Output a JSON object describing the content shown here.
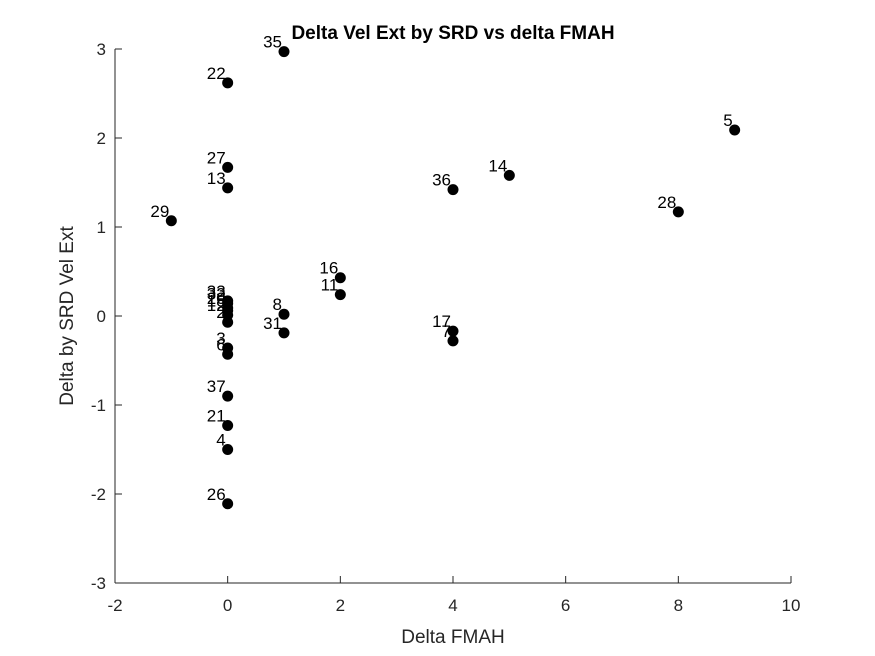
{
  "chart_data": {
    "type": "scatter",
    "title": "Delta Vel Ext by SRD vs delta FMAH",
    "xlabel": "Delta FMAH",
    "ylabel": "Delta by SRD Vel Ext",
    "xlim": [
      -2,
      10
    ],
    "ylim": [
      -3,
      3
    ],
    "xticks": [
      -2,
      0,
      2,
      4,
      6,
      8,
      10
    ],
    "yticks": [
      -3,
      -2,
      -1,
      0,
      1,
      2,
      3
    ],
    "grid": false,
    "points": [
      {
        "label": "35",
        "x": 1,
        "y": 2.97
      },
      {
        "label": "22",
        "x": 0,
        "y": 2.62
      },
      {
        "label": "5",
        "x": 9,
        "y": 2.09
      },
      {
        "label": "27",
        "x": 0,
        "y": 1.67
      },
      {
        "label": "14",
        "x": 5,
        "y": 1.58
      },
      {
        "label": "13",
        "x": 0,
        "y": 1.44
      },
      {
        "label": "36",
        "x": 4,
        "y": 1.42
      },
      {
        "label": "28",
        "x": 8,
        "y": 1.17
      },
      {
        "label": "29",
        "x": -1,
        "y": 1.07
      },
      {
        "label": "16",
        "x": 2,
        "y": 0.43
      },
      {
        "label": "11",
        "x": 2,
        "y": 0.24
      },
      {
        "label": "33",
        "x": 0,
        "y": 0.17
      },
      {
        "label": "32",
        "x": 0,
        "y": 0.14
      },
      {
        "label": "20",
        "x": 0,
        "y": 0.09
      },
      {
        "label": "18",
        "x": 0,
        "y": 0.06
      },
      {
        "label": "8",
        "x": 1,
        "y": 0.02
      },
      {
        "label": "12",
        "x": 0,
        "y": 0.01
      },
      {
        "label": "2",
        "x": 0,
        "y": -0.07
      },
      {
        "label": "31",
        "x": 1,
        "y": -0.19
      },
      {
        "label": "17",
        "x": 4,
        "y": -0.17
      },
      {
        "label": "7",
        "x": 4,
        "y": -0.28
      },
      {
        "label": "3",
        "x": 0,
        "y": -0.36
      },
      {
        "label": "6",
        "x": 0,
        "y": -0.43
      },
      {
        "label": "37",
        "x": 0,
        "y": -0.9
      },
      {
        "label": "21",
        "x": 0,
        "y": -1.23
      },
      {
        "label": "4",
        "x": 0,
        "y": -1.5
      },
      {
        "label": "26",
        "x": 0,
        "y": -2.11
      }
    ]
  }
}
